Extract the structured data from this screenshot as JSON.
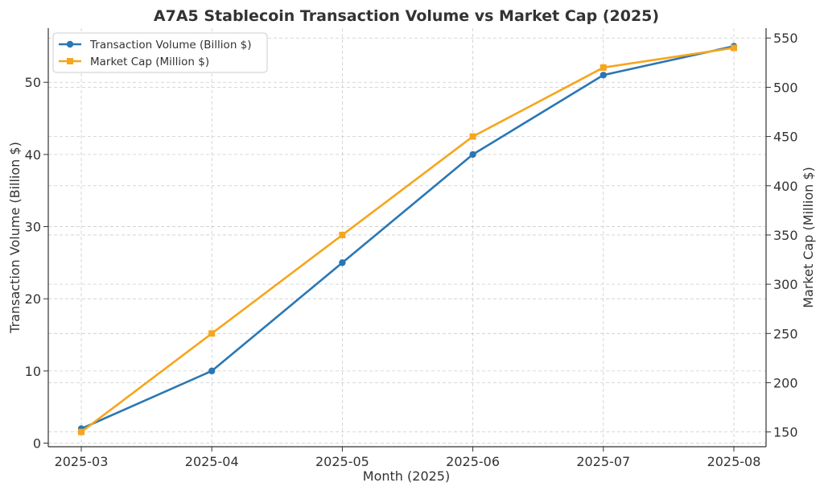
{
  "chart_data": {
    "type": "line",
    "title": "A7A5 Stablecoin Transaction Volume vs Market Cap (2025)",
    "xlabel": "Month (2025)",
    "categories": [
      "2025-03",
      "2025-04",
      "2025-05",
      "2025-06",
      "2025-07",
      "2025-08"
    ],
    "y_left": {
      "label": "Transaction Volume (Billion $)",
      "ylim": [
        -0.5,
        57.5
      ],
      "ticks": [
        0,
        10,
        20,
        30,
        40,
        50
      ]
    },
    "y_right": {
      "label": "Market Cap (Million $)",
      "ylim": [
        135,
        560
      ],
      "ticks": [
        150,
        200,
        250,
        300,
        350,
        400,
        450,
        500,
        550
      ]
    },
    "series": [
      {
        "name": "Transaction Volume (Billion $)",
        "axis": "left",
        "color": "#2a77b4",
        "marker": "circle",
        "values": [
          2,
          10,
          25,
          40,
          51,
          55
        ]
      },
      {
        "name": "Market Cap (Million $)",
        "axis": "right",
        "color": "#f7a51c",
        "marker": "square",
        "values": [
          150,
          250,
          350,
          450,
          520,
          540
        ]
      }
    ],
    "grid": true,
    "legend_position": "upper-left"
  }
}
